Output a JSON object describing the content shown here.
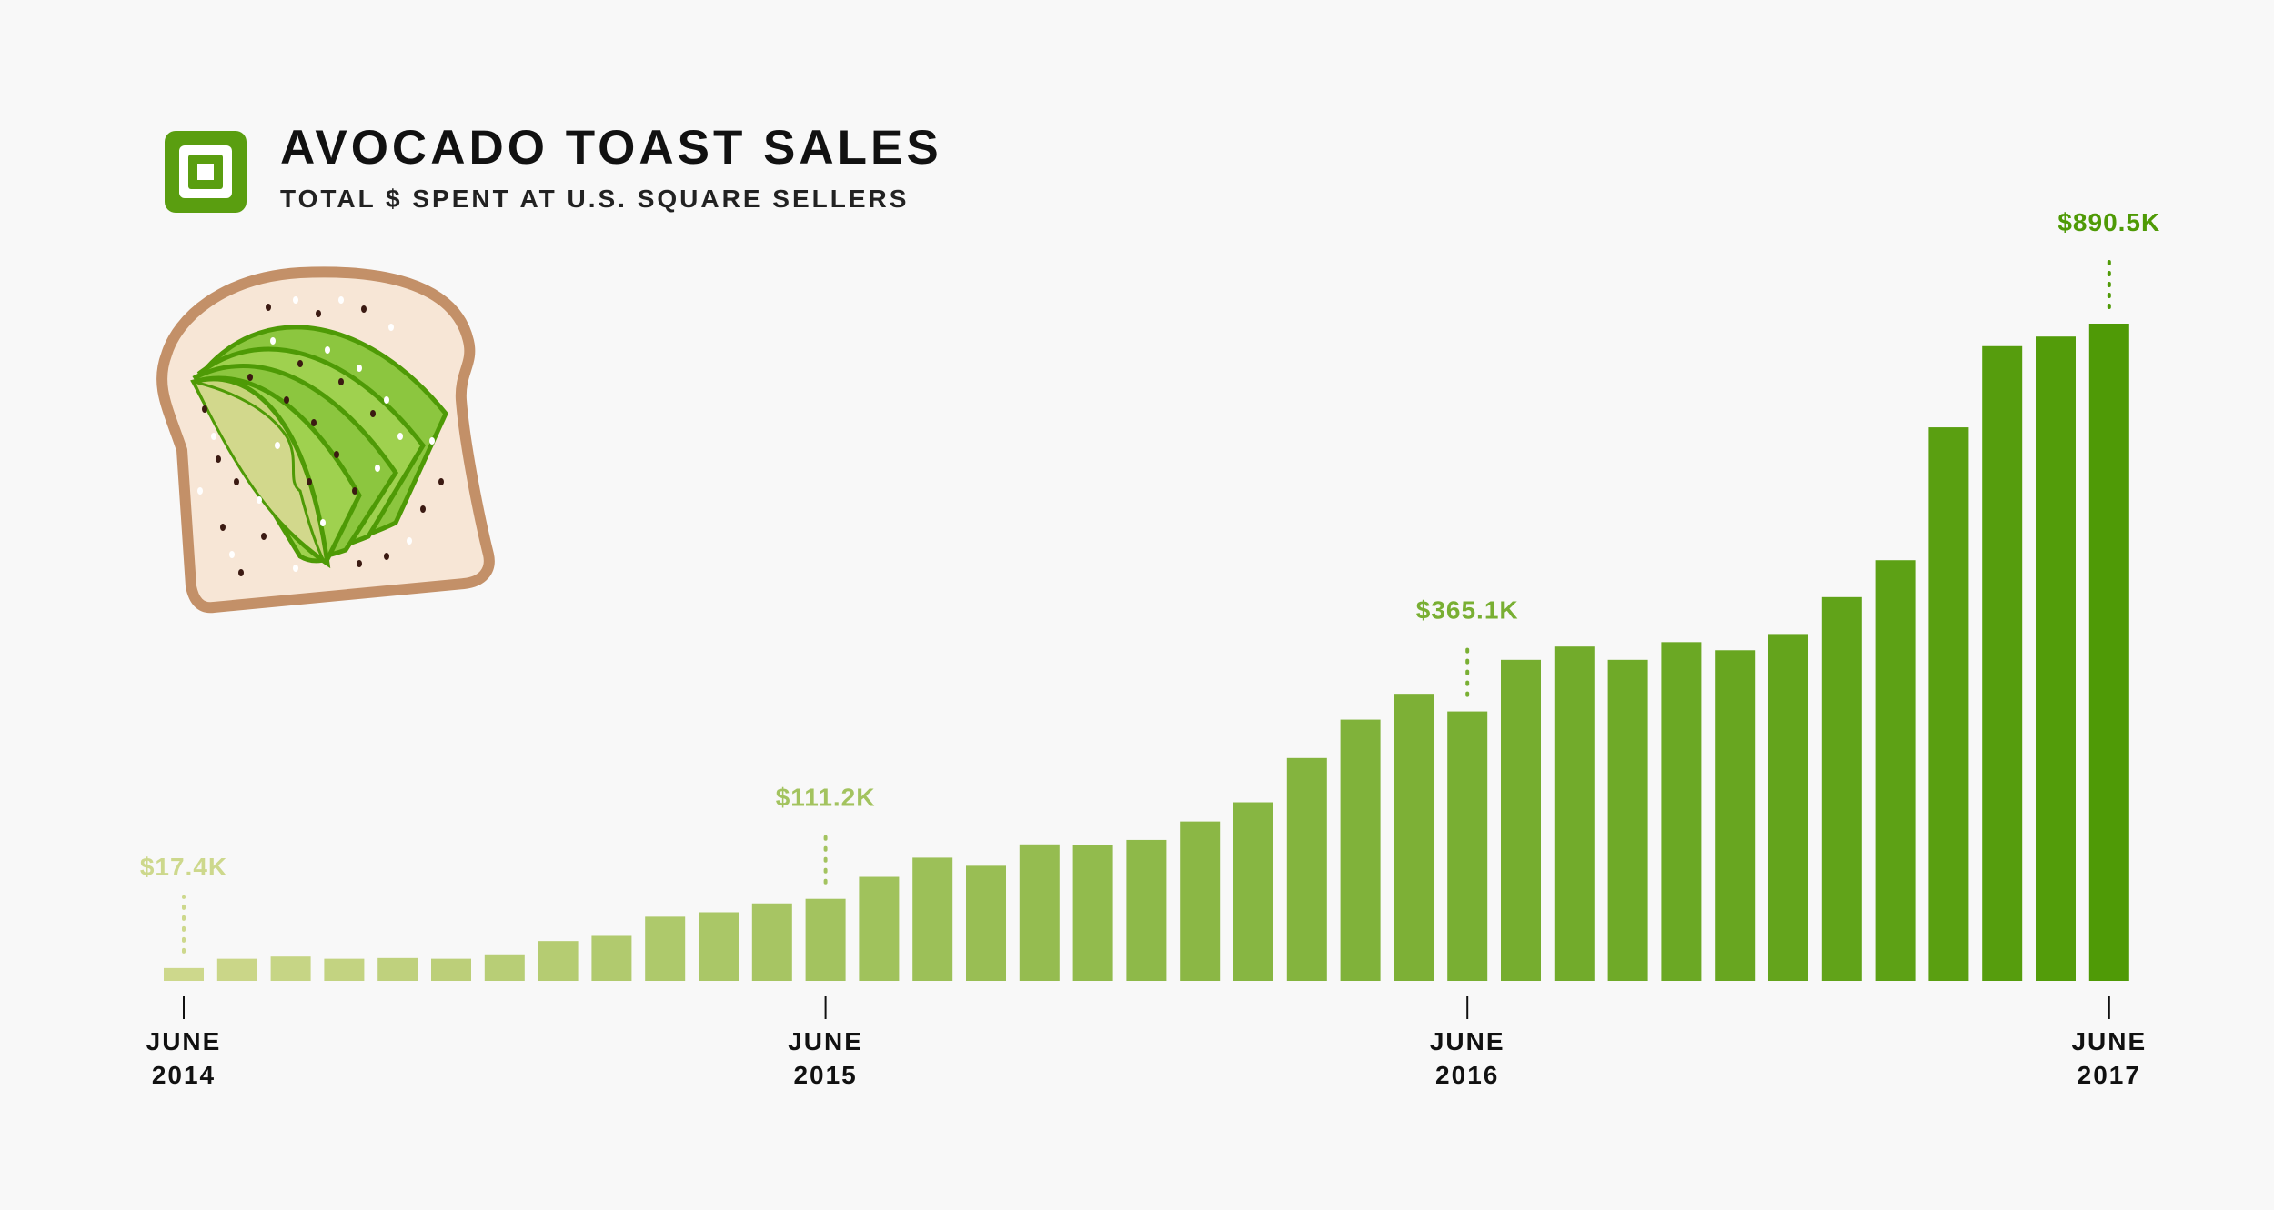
{
  "header": {
    "title": "AVOCADO TOAST SALES",
    "subtitle": "TOTAL $ SPENT AT U.S. SQUARE SELLERS",
    "logo_icon": "square-logo-icon"
  },
  "illustration": {
    "icon": "avocado-toast-icon"
  },
  "colors": {
    "start": "#cdd88c",
    "end": "#4f9a06",
    "axis": "#111111"
  },
  "chart_data": {
    "type": "bar",
    "title": "AVOCADO TOAST SALES",
    "subtitle": "TOTAL $ SPENT AT U.S. SQUARE SELLERS",
    "unit": "$K",
    "x_start": "2014-06",
    "values": [
      17.4,
      30,
      33,
      30,
      31,
      30,
      36,
      54,
      61,
      87,
      93,
      105,
      111.2,
      141,
      167,
      156,
      185,
      184,
      191,
      216,
      242,
      302,
      354,
      389,
      365.1,
      435,
      453,
      435,
      459,
      448,
      470,
      520,
      570,
      750,
      860,
      873,
      890.5
    ],
    "annotations": [
      {
        "index": 0,
        "label": "$17.4K"
      },
      {
        "index": 12,
        "label": "$111.2K"
      },
      {
        "index": 24,
        "label": "$365.1K"
      },
      {
        "index": 36,
        "label": "$890.5K"
      }
    ],
    "ticks": [
      {
        "index": 0,
        "month": "JUNE",
        "year": "2014"
      },
      {
        "index": 12,
        "month": "JUNE",
        "year": "2015"
      },
      {
        "index": 24,
        "month": "JUNE",
        "year": "2016"
      },
      {
        "index": 36,
        "month": "JUNE",
        "year": "2017"
      }
    ],
    "ylim": [
      0,
      1000
    ],
    "grid": false,
    "legend": "none"
  }
}
